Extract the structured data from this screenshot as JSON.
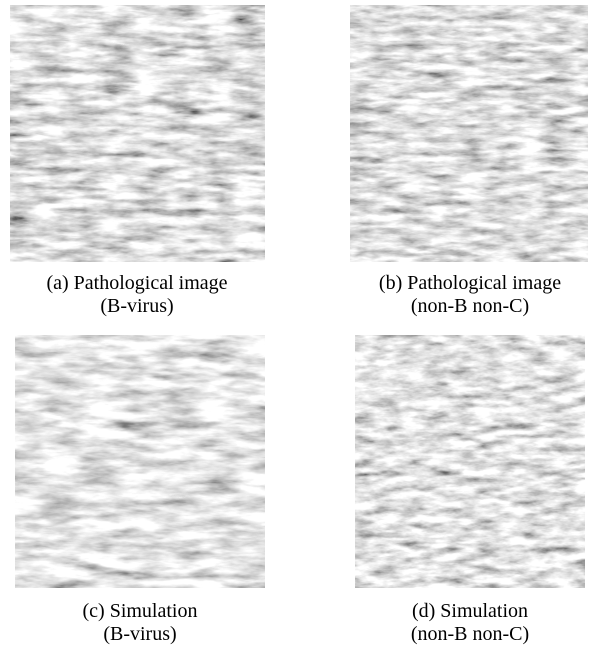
{
  "panels": [
    {
      "caption": [
        "(a) Pathological image",
        "(B-virus)"
      ]
    },
    {
      "caption": [
        "(b) Pathological image",
        "(non-B non-C)"
      ]
    },
    {
      "caption": [
        "(c) Simulation",
        "(B-virus)"
      ]
    },
    {
      "caption": [
        "(d) Simulation",
        "(non-B non-C)"
      ]
    }
  ]
}
